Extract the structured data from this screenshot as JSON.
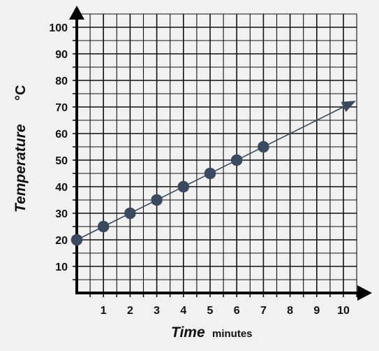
{
  "colors": {
    "background": "#f1f1f1",
    "grid": "#111111",
    "axis": "#000000",
    "point": "#3a4a5f",
    "trend_line": "#3a4a5f"
  },
  "chart_data": {
    "type": "scatter",
    "title": "",
    "xlabel": "Time",
    "xlabel_unit": "minutes",
    "ylabel": "Temperature",
    "ylabel_unit": "°C",
    "xlim": [
      0,
      10
    ],
    "ylim": [
      0,
      100
    ],
    "grid": true,
    "x_ticks": [
      "1",
      "2",
      "3",
      "4",
      "5",
      "6",
      "7",
      "8",
      "9",
      "10"
    ],
    "y_ticks": [
      "10",
      "20",
      "30",
      "40",
      "50",
      "60",
      "70",
      "80",
      "90",
      "100"
    ],
    "x_tick_values": [
      1,
      2,
      3,
      4,
      5,
      6,
      7,
      8,
      9,
      10
    ],
    "y_tick_values": [
      10,
      20,
      30,
      40,
      50,
      60,
      70,
      80,
      90,
      100
    ],
    "series": [
      {
        "x": [
          0,
          1,
          2,
          3,
          4,
          5,
          6,
          7
        ],
        "y": [
          20,
          25,
          30,
          35,
          40,
          45,
          50,
          55
        ]
      }
    ],
    "trend_line": {
      "x": [
        0,
        10.4
      ],
      "y": [
        20,
        72
      ]
    }
  }
}
